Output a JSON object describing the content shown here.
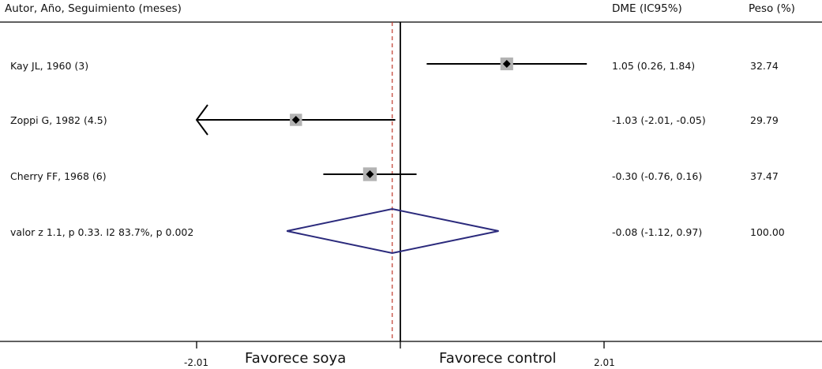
{
  "chart_data": {
    "type": "forest",
    "headers": {
      "study": "Autor, Año, Seguimiento (meses)",
      "effect": "DME (IC95%)",
      "weight": "Peso (%)"
    },
    "studies": [
      {
        "label": "Kay JL, 1960 (3)",
        "estimate": 1.05,
        "lower": 0.26,
        "upper": 1.84,
        "ci_text": "1.05 (0.26, 1.84)",
        "weight_text": "32.74",
        "weight": 32.74
      },
      {
        "label": "Zoppi G, 1982 (4.5)",
        "estimate": -1.03,
        "lower": -2.01,
        "upper": -0.05,
        "ci_text": "-1.03 (-2.01, -0.05)",
        "weight_text": "29.79",
        "weight": 29.79,
        "lower_truncated": true
      },
      {
        "label": "Cherry FF, 1968 (6)",
        "estimate": -0.3,
        "lower": -0.76,
        "upper": 0.16,
        "ci_text": "-0.30 (-0.76, 0.16)",
        "weight_text": "37.47",
        "weight": 37.47
      }
    ],
    "pooled": {
      "label": "valor z 1.1, p 0.33. I2 83.7%, p 0.002",
      "estimate": -0.08,
      "lower": -1.12,
      "upper": 0.97,
      "ci_text": "-0.08 (-1.12, 0.97)",
      "weight_text": "100.00"
    },
    "xlim": [
      -2.01,
      2.01
    ],
    "x_ticks": [
      {
        "value": -2.01,
        "label": "-2.01"
      },
      {
        "value": 2.01,
        "label": "2.01"
      }
    ],
    "null_line": 0,
    "favors_left": "Favorece soya",
    "favors_right": "Favorece control",
    "colors": {
      "ci_line": "#000000",
      "point": "#000000",
      "point_box": "#b3b3b3",
      "diamond": "#2b2a7c",
      "null_line": "#000000",
      "pooled_line": "#c0392b",
      "axis": "#000000"
    }
  }
}
